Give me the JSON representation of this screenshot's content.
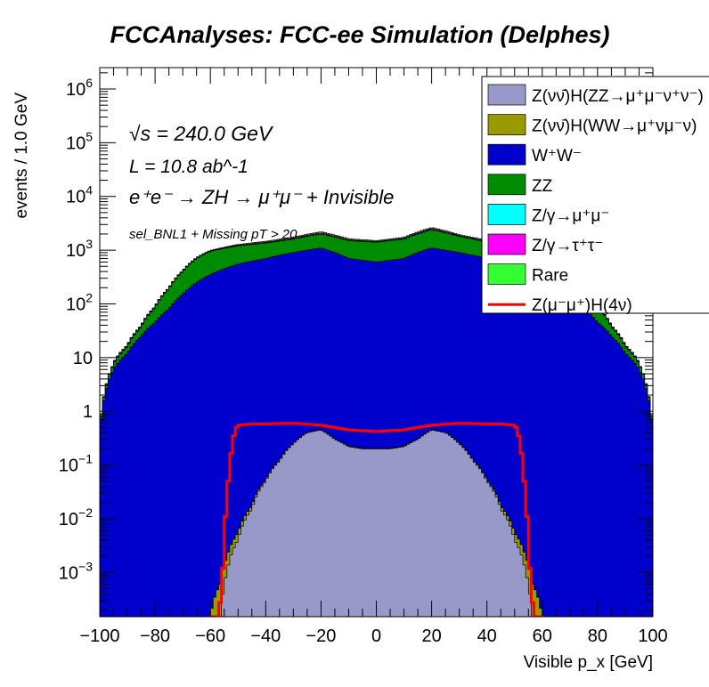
{
  "chart_data": {
    "type": "area",
    "title": "FCCAnalyses: FCC-ee Simulation (Delphes)",
    "xlabel": "Visible p_x [GeV]",
    "ylabel": "events / 1.0 GeV",
    "xlim": [
      -100,
      100
    ],
    "ylim": [
      0.00015,
      2500000
    ],
    "log_y": true,
    "grid": false,
    "legend_position": "top-right",
    "x_ticks": [
      -100,
      -80,
      -60,
      -40,
      -20,
      0,
      20,
      40,
      60,
      80,
      100
    ],
    "y_ticks": [
      {
        "value": 0.001,
        "label": "10^-3"
      },
      {
        "value": 0.01,
        "label": "10^-2"
      },
      {
        "value": 0.1,
        "label": "10^-1"
      },
      {
        "value": 1,
        "label": "1"
      },
      {
        "value": 10,
        "label": "10"
      },
      {
        "value": 100,
        "label": "10^2"
      },
      {
        "value": 1000,
        "label": "10^3"
      },
      {
        "value": 10000,
        "label": "10^4"
      },
      {
        "value": 100000,
        "label": "10^5"
      },
      {
        "value": 1000000,
        "label": "10^6"
      }
    ],
    "annotations": {
      "energy": "√s = 240.0 GeV",
      "lumi": "L = 10.8 ab^-1",
      "process": "e⁺e⁻ → ZH → μ⁺μ⁻ + Invisible",
      "selection": "sel_BNL1 + Missing pT > 20"
    },
    "series": [
      {
        "name": "Z(νν̄)H(ZZ→μ⁺μ⁻ν⁺ν⁻)",
        "color": "#9999c9",
        "style": "stack",
        "x": [
          -56,
          -54,
          -50,
          -45,
          -40,
          -35,
          -30,
          -25,
          -20,
          -15,
          -10,
          -5,
          0,
          5,
          10,
          15,
          20,
          25,
          30,
          35,
          40,
          45,
          50,
          54,
          56
        ],
        "y": [
          0.0002,
          0.001,
          0.004,
          0.015,
          0.05,
          0.12,
          0.25,
          0.4,
          0.45,
          0.3,
          0.22,
          0.2,
          0.2,
          0.2,
          0.22,
          0.3,
          0.45,
          0.4,
          0.25,
          0.12,
          0.05,
          0.015,
          0.004,
          0.001,
          0.0002
        ]
      },
      {
        "name": "Z(νν̄)H(WW→μ⁺νμ⁻ν)",
        "color": "#999900",
        "style": "stack",
        "x": [
          -60,
          -55,
          -50,
          -40,
          -30,
          -20,
          -10,
          0,
          10,
          20,
          30,
          40,
          50,
          55,
          60
        ],
        "y": [
          0.00015,
          0.0008,
          0.0015,
          0.003,
          0.005,
          0.007,
          0.006,
          0.005,
          0.006,
          0.007,
          0.005,
          0.003,
          0.0015,
          0.0008,
          0.00015
        ]
      },
      {
        "name": "W⁺W⁻",
        "color": "#0000cc",
        "style": "stack",
        "x": [
          -100,
          -98,
          -95,
          -90,
          -85,
          -80,
          -75,
          -70,
          -65,
          -60,
          -50,
          -40,
          -30,
          -20,
          -10,
          0,
          10,
          20,
          30,
          40,
          50,
          60,
          65,
          70,
          75,
          80,
          85,
          90,
          95,
          98,
          100
        ],
        "y": [
          0.3,
          2,
          6,
          12,
          25,
          45,
          80,
          150,
          250,
          350,
          550,
          700,
          900,
          1100,
          700,
          600,
          700,
          1100,
          900,
          700,
          550,
          350,
          250,
          150,
          80,
          45,
          25,
          12,
          6,
          2,
          0.3
        ]
      },
      {
        "name": "ZZ",
        "color": "#008c00",
        "style": "stack",
        "x": [
          -100,
          -98,
          -95,
          -90,
          -85,
          -80,
          -75,
          -70,
          -65,
          -60,
          -50,
          -40,
          -30,
          -20,
          -10,
          0,
          10,
          20,
          30,
          40,
          50,
          60,
          65,
          70,
          75,
          80,
          85,
          90,
          95,
          98,
          100
        ],
        "y": [
          0.05,
          0.3,
          1.5,
          4,
          12,
          40,
          110,
          250,
          450,
          600,
          650,
          650,
          700,
          900,
          800,
          800,
          900,
          1300,
          900,
          700,
          600,
          500,
          400,
          230,
          100,
          40,
          12,
          4,
          1.5,
          0.3,
          0.05
        ]
      },
      {
        "name": "Z/γ→μ⁺μ⁻",
        "color": "#00ffff",
        "style": "stack",
        "x": [
          -100,
          0,
          100
        ],
        "y": [
          0,
          0,
          0
        ]
      },
      {
        "name": "Z/γ→τ⁺τ⁻",
        "color": "#ff00ff",
        "style": "stack",
        "x": [
          -95,
          -90,
          -85,
          -80,
          -75,
          -70,
          -60,
          -50,
          -40,
          -30,
          -20,
          -10,
          0,
          10,
          20,
          30,
          40,
          50,
          60,
          70,
          75,
          80,
          85,
          90,
          95
        ],
        "y": [
          0.3,
          0.6,
          1.2,
          2.5,
          4,
          8,
          20,
          35,
          50,
          70,
          100,
          60,
          45,
          60,
          130,
          70,
          50,
          35,
          20,
          8,
          4,
          2.5,
          1.2,
          0.6,
          0.3
        ]
      },
      {
        "name": "Rare",
        "color": "#33ff33",
        "style": "stack",
        "x": [
          -100,
          -98,
          -95,
          -90,
          -85,
          -80,
          -75,
          -70,
          -65,
          -60,
          -50,
          -40,
          -30,
          -20,
          -10,
          0,
          10,
          20,
          30,
          40,
          50,
          60,
          65,
          70,
          75,
          80,
          85,
          90,
          95,
          98,
          100
        ],
        "y": [
          0.05,
          0.08,
          0.2,
          0.5,
          1,
          1.5,
          3,
          5,
          10,
          20,
          40,
          60,
          75,
          100,
          70,
          60,
          70,
          110,
          75,
          60,
          40,
          20,
          10,
          5,
          3,
          1.5,
          1,
          0.5,
          0.2,
          0.08,
          0.05
        ]
      },
      {
        "name": "Z(μ⁻μ⁺)H(4ν)",
        "color": "#ff0000",
        "style": "line",
        "x": [
          -60,
          -57,
          -56,
          -55,
          -54,
          -53,
          -52,
          -51,
          -50,
          -45,
          -40,
          -30,
          -20,
          -10,
          0,
          10,
          20,
          30,
          40,
          45,
          50,
          51,
          52,
          53,
          54,
          55,
          56,
          57,
          60
        ],
        "y": [
          0.00015,
          0.00015,
          0.0004,
          0.002,
          0.02,
          0.08,
          0.25,
          0.45,
          0.55,
          0.58,
          0.58,
          0.6,
          0.55,
          0.45,
          0.42,
          0.45,
          0.55,
          0.6,
          0.58,
          0.58,
          0.55,
          0.45,
          0.25,
          0.08,
          0.02,
          0.002,
          0.0004,
          0.00015,
          0.00015
        ]
      }
    ]
  }
}
